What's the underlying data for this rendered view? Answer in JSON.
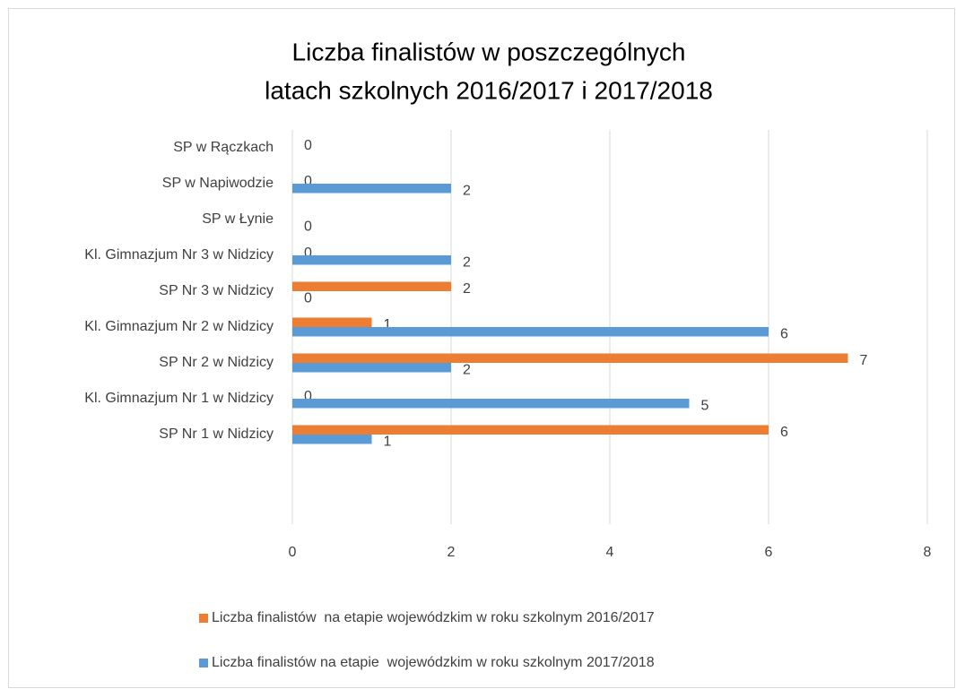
{
  "chart_data": {
    "type": "barh",
    "title": [
      "Liczba finalistów w poszczególnych",
      "latach szkolnych 2016/2017 i 2017/2018"
    ],
    "categories": [
      "SP w Rączkach",
      "SP w Napiwodzie",
      "SP w Łynie",
      "Kl. Gimnazjum Nr 3 w Nidzicy",
      "SP Nr 3 w Nidzicy",
      "Kl. Gimnazjum Nr 2 w Nidzicy",
      "SP Nr 2 w Nidzicy",
      "Kl. Gimnazjum Nr 1 w Nidzicy",
      "SP Nr 1 w Nidzicy",
      null,
      null
    ],
    "series": [
      {
        "name": "Liczba finalistów  na etapie wojewódzkim w roku szkolnym 2016/2017",
        "color": "#ed7d31",
        "values": [
          0,
          0,
          null,
          0,
          2,
          1,
          7,
          0,
          6,
          null,
          null
        ]
      },
      {
        "name": "Liczba finalistów na etapie  wojewódzkim w roku szkolnym 2017/2018",
        "color": "#5b9bd5",
        "values": [
          null,
          2,
          0,
          2,
          0,
          6,
          2,
          5,
          1,
          null,
          null
        ]
      }
    ],
    "xlim": [
      0,
      8
    ],
    "xticks": [
      0,
      2,
      4,
      6,
      8
    ],
    "grid": true
  }
}
